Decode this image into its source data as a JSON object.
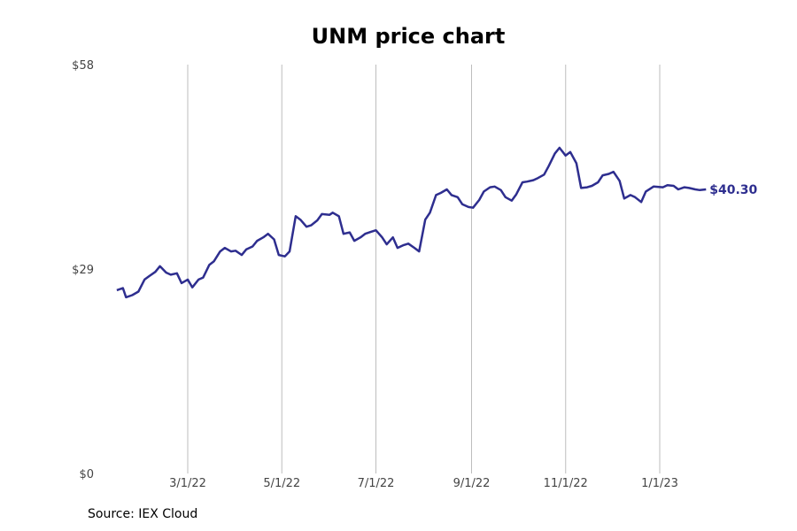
{
  "chart_data": {
    "type": "line",
    "title": "UNM price chart",
    "source": "Source: IEX Cloud",
    "ylim": [
      0,
      58
    ],
    "yticks": [
      {
        "value": 0,
        "label": "$0"
      },
      {
        "value": 29,
        "label": "$29"
      },
      {
        "value": 58,
        "label": "$58"
      }
    ],
    "xticks": [
      {
        "date": "2022-03-01",
        "label": "3/1/22"
      },
      {
        "date": "2022-05-01",
        "label": "5/1/22"
      },
      {
        "date": "2022-07-01",
        "label": "7/1/22"
      },
      {
        "date": "2022-09-01",
        "label": "9/1/22"
      },
      {
        "date": "2022-11-01",
        "label": "11/1/22"
      },
      {
        "date": "2023-01-01",
        "label": "1/1/23"
      }
    ],
    "xlim": [
      "2022-01-10",
      "2023-03-31"
    ],
    "grid": "vertical",
    "line_color": "#2e2e8f",
    "end_label": "$40.30",
    "series": [
      {
        "x": [
          "2022-01-14",
          "2022-01-18",
          "2022-01-20",
          "2022-01-24",
          "2022-01-28",
          "2022-02-01",
          "2022-02-04",
          "2022-02-08",
          "2022-02-11",
          "2022-02-15",
          "2022-02-18",
          "2022-02-22",
          "2022-02-25",
          "2022-03-01",
          "2022-03-04",
          "2022-03-08",
          "2022-03-11",
          "2022-03-15",
          "2022-03-18",
          "2022-03-22",
          "2022-03-25",
          "2022-03-29",
          "2022-04-01",
          "2022-04-05",
          "2022-04-08",
          "2022-04-12",
          "2022-04-15",
          "2022-04-19",
          "2022-04-22",
          "2022-04-26",
          "2022-04-29",
          "2022-05-03",
          "2022-05-06",
          "2022-05-10",
          "2022-05-13",
          "2022-05-17",
          "2022-05-20",
          "2022-05-24",
          "2022-05-27",
          "2022-06-01",
          "2022-06-03",
          "2022-06-07",
          "2022-06-10",
          "2022-06-14",
          "2022-06-17",
          "2022-06-21",
          "2022-06-24",
          "2022-06-28",
          "2022-07-01",
          "2022-07-05",
          "2022-07-08",
          "2022-07-12",
          "2022-07-15",
          "2022-07-19",
          "2022-07-22",
          "2022-07-26",
          "2022-07-29",
          "2022-08-02",
          "2022-08-05",
          "2022-08-09",
          "2022-08-12",
          "2022-08-16",
          "2022-08-19",
          "2022-08-23",
          "2022-08-26",
          "2022-08-30",
          "2022-09-02",
          "2022-09-06",
          "2022-09-09",
          "2022-09-13",
          "2022-09-16",
          "2022-09-20",
          "2022-09-23",
          "2022-09-27",
          "2022-09-30",
          "2022-10-04",
          "2022-10-07",
          "2022-10-11",
          "2022-10-14",
          "2022-10-18",
          "2022-10-21",
          "2022-10-25",
          "2022-10-28",
          "2022-11-01",
          "2022-11-04",
          "2022-11-08",
          "2022-11-11",
          "2022-11-15",
          "2022-11-18",
          "2022-11-22",
          "2022-11-25",
          "2022-11-29",
          "2022-12-02",
          "2022-12-06",
          "2022-12-09",
          "2022-12-13",
          "2022-12-16",
          "2022-12-20",
          "2022-12-23",
          "2022-12-28",
          "2023-01-03",
          "2023-01-06",
          "2023-01-10",
          "2023-01-13",
          "2023-01-17",
          "2023-01-20",
          "2023-01-24",
          "2023-01-27",
          "2023-01-31"
        ],
        "y": [
          26.0,
          26.3,
          25.0,
          25.3,
          25.8,
          27.5,
          28.0,
          28.6,
          29.4,
          28.5,
          28.2,
          28.4,
          27.0,
          27.5,
          26.4,
          27.5,
          27.8,
          29.6,
          30.1,
          31.5,
          32.0,
          31.5,
          31.6,
          31.0,
          31.8,
          32.2,
          33.0,
          33.5,
          34.0,
          33.2,
          31.0,
          30.8,
          31.5,
          36.5,
          36.0,
          35.0,
          35.2,
          35.9,
          36.8,
          36.7,
          37.0,
          36.5,
          34.0,
          34.2,
          33.0,
          33.5,
          34.0,
          34.3,
          34.5,
          33.5,
          32.5,
          33.5,
          32.0,
          32.4,
          32.6,
          32.0,
          31.5,
          36.0,
          37.0,
          39.5,
          39.8,
          40.3,
          39.5,
          39.2,
          38.2,
          37.8,
          37.7,
          38.8,
          40.0,
          40.6,
          40.7,
          40.2,
          39.2,
          38.7,
          39.6,
          41.3,
          41.4,
          41.6,
          41.9,
          42.4,
          43.6,
          45.4,
          46.2,
          45.1,
          45.6,
          44.0,
          40.5,
          40.6,
          40.8,
          41.3,
          42.3,
          42.5,
          42.8,
          41.5,
          39.0,
          39.5,
          39.2,
          38.5,
          40.0,
          40.7,
          40.6,
          40.9,
          40.8,
          40.3,
          40.6,
          40.5,
          40.3,
          40.2,
          40.3
        ]
      }
    ]
  }
}
